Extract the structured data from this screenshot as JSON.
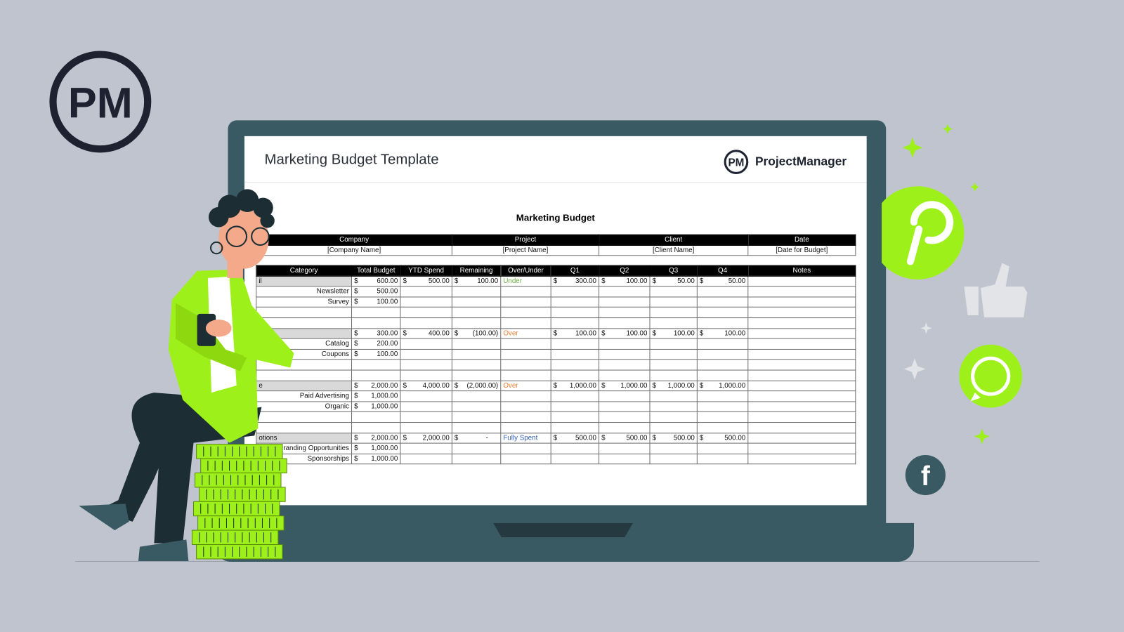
{
  "logo_text": "PM",
  "document": {
    "title": "Marketing Budget Template",
    "brand_name": "ProjectManager",
    "brand_logo": "PM"
  },
  "sheet": {
    "title": "Marketing Budget",
    "info_headers": [
      "Company",
      "Project",
      "Client",
      "Date"
    ],
    "info_values": [
      "[Company Name]",
      "[Project Name]",
      "[Client Name]",
      "[Date for Budget]"
    ],
    "columns": [
      "Category",
      "Total Budget",
      "YTD Spend",
      "Remaining",
      "Over/Under",
      "Q1",
      "Q2",
      "Q3",
      "Q4",
      "Notes"
    ],
    "rows": [
      {
        "group": true,
        "category": "il",
        "total": "600.00",
        "ytd": "500.00",
        "remaining": "100.00",
        "status": "Under",
        "q1": "300.00",
        "q2": "100.00",
        "q3": "50.00",
        "q4": "50.00"
      },
      {
        "category": "Newsletter",
        "total": "500.00"
      },
      {
        "category": "Survey",
        "total": "100.00"
      },
      {},
      {},
      {
        "group": true,
        "category": "",
        "total": "300.00",
        "ytd": "400.00",
        "remaining": "(100.00)",
        "status": "Over",
        "q1": "100.00",
        "q2": "100.00",
        "q3": "100.00",
        "q4": "100.00"
      },
      {
        "category": "Catalog",
        "total": "200.00"
      },
      {
        "category": "Coupons",
        "total": "100.00"
      },
      {},
      {},
      {
        "group": true,
        "category": "e",
        "total": "2,000.00",
        "ytd": "4,000.00",
        "remaining": "(2,000.00)",
        "status": "Over",
        "q1": "1,000.00",
        "q2": "1,000.00",
        "q3": "1,000.00",
        "q4": "1,000.00"
      },
      {
        "category": "Paid Advertising",
        "total": "1,000.00"
      },
      {
        "category": "Organic",
        "total": "1,000.00"
      },
      {},
      {},
      {
        "group": true,
        "category": "otions",
        "total": "2,000.00",
        "ytd": "2,000.00",
        "remaining": "-",
        "status": "Fully Spent",
        "q1": "500.00",
        "q2": "500.00",
        "q3": "500.00",
        "q4": "500.00"
      },
      {
        "category": "randing Opportunities",
        "total": "1,000.00"
      },
      {
        "category": "Sponsorships",
        "total": "1,000.00"
      }
    ],
    "currency_symbol": "$"
  },
  "colors": {
    "accent_green": "#9ef01a",
    "laptop": "#3a5a63",
    "background": "#c0c4ce",
    "under": "#70ad47",
    "over": "#ed7d31",
    "fully_spent": "#2f5fb3"
  },
  "icons": [
    "pinterest-icon",
    "whatsapp-icon",
    "facebook-icon",
    "thumbs-up-icon",
    "sparkle-icon"
  ]
}
